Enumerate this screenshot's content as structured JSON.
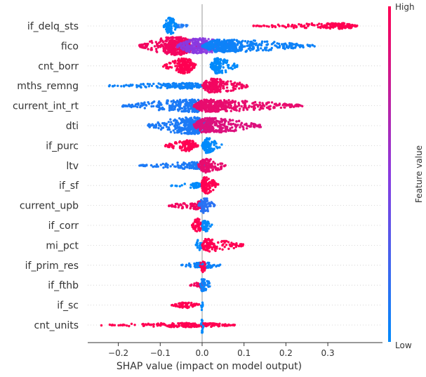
{
  "chart_data": {
    "type": "beeswarm",
    "title": "",
    "xlabel": "SHAP value (impact on model output)",
    "ylabel": "",
    "xlim": [
      -0.27,
      0.38
    ],
    "x_ticks": [
      -0.2,
      -0.1,
      0.0,
      0.1,
      0.2,
      0.3
    ],
    "x_tick_labels": [
      "−0.2",
      "−0.1",
      "0.0",
      "0.1",
      "0.2",
      "0.3"
    ],
    "colorbar": {
      "title": "Feature value",
      "high_label": "High",
      "low_label": "Low",
      "low_color": "#008afb",
      "high_color": "#ff0052"
    },
    "features": [
      {
        "name": "if_delq_sts",
        "groups": [
          {
            "min": -0.092,
            "max": -0.057,
            "peak": -0.078,
            "height": 12,
            "value": 0.0,
            "alpha": 1.0
          },
          {
            "min": -0.06,
            "max": -0.03,
            "peak": -0.05,
            "height": 3,
            "value": 0.1,
            "alpha": 0.8
          },
          {
            "min": 0.12,
            "max": 0.37,
            "peak": 0.34,
            "height": 4,
            "value": 1.0,
            "alpha": 1.0
          }
        ]
      },
      {
        "name": "fico",
        "groups": [
          {
            "min": -0.15,
            "max": 0.0,
            "peak": -0.06,
            "height": 13,
            "value": 0.95,
            "alpha": 1.0
          },
          {
            "min": -0.06,
            "max": 0.08,
            "peak": -0.01,
            "height": 11,
            "value": 0.5,
            "alpha": 0.9
          },
          {
            "min": 0.0,
            "max": 0.27,
            "peak": 0.04,
            "height": 9,
            "value": 0.05,
            "alpha": 1.0
          }
        ]
      },
      {
        "name": "cnt_borr",
        "groups": [
          {
            "min": -0.095,
            "max": -0.015,
            "peak": -0.04,
            "height": 11,
            "value": 1.0,
            "alpha": 1.0
          },
          {
            "min": 0.02,
            "max": 0.085,
            "peak": 0.035,
            "height": 11,
            "value": 0.0,
            "alpha": 1.0
          }
        ]
      },
      {
        "name": "mths_remng",
        "groups": [
          {
            "min": -0.225,
            "max": 0.01,
            "peak": -0.03,
            "height": 4,
            "value": 0.05,
            "alpha": 1.0
          },
          {
            "min": 0.0,
            "max": 0.115,
            "peak": 0.02,
            "height": 10,
            "value": 0.95,
            "alpha": 1.0
          }
        ]
      },
      {
        "name": "current_int_rt",
        "groups": [
          {
            "min": -0.19,
            "max": 0.0,
            "peak": -0.01,
            "height": 9,
            "value": 0.1,
            "alpha": 1.0
          },
          {
            "min": -0.02,
            "max": 0.24,
            "peak": 0.01,
            "height": 9,
            "value": 0.9,
            "alpha": 1.0
          }
        ]
      },
      {
        "name": "dti",
        "groups": [
          {
            "min": -0.13,
            "max": 0.02,
            "peak": -0.02,
            "height": 12,
            "value": 0.1,
            "alpha": 1.0
          },
          {
            "min": -0.02,
            "max": 0.14,
            "peak": 0.01,
            "height": 11,
            "value": 0.85,
            "alpha": 1.0
          }
        ]
      },
      {
        "name": "if_purc",
        "groups": [
          {
            "min": -0.088,
            "max": -0.01,
            "peak": -0.03,
            "height": 8,
            "value": 1.0,
            "alpha": 1.0
          },
          {
            "min": 0.0,
            "max": 0.048,
            "peak": 0.012,
            "height": 11,
            "value": 0.0,
            "alpha": 1.0
          }
        ]
      },
      {
        "name": "ltv",
        "groups": [
          {
            "min": -0.15,
            "max": 0.005,
            "peak": -0.005,
            "height": 5,
            "value": 0.1,
            "alpha": 1.0
          },
          {
            "min": -0.01,
            "max": 0.06,
            "peak": 0.008,
            "height": 10,
            "value": 0.9,
            "alpha": 1.0
          }
        ]
      },
      {
        "name": "if_sf",
        "groups": [
          {
            "min": -0.075,
            "max": -0.003,
            "peak": -0.01,
            "height": 4,
            "value": 0.0,
            "alpha": 1.0
          },
          {
            "min": -0.003,
            "max": 0.04,
            "peak": 0.006,
            "height": 12,
            "value": 1.0,
            "alpha": 1.0
          }
        ]
      },
      {
        "name": "current_upb",
        "groups": [
          {
            "min": -0.085,
            "max": 0.0,
            "peak": -0.005,
            "height": 6,
            "value": 0.95,
            "alpha": 1.0
          },
          {
            "min": -0.01,
            "max": 0.03,
            "peak": 0.005,
            "height": 11,
            "value": 0.15,
            "alpha": 1.0
          }
        ]
      },
      {
        "name": "if_corr",
        "groups": [
          {
            "min": -0.025,
            "max": 0.0,
            "peak": -0.01,
            "height": 10,
            "value": 1.0,
            "alpha": 1.0
          },
          {
            "min": 0.0,
            "max": 0.028,
            "peak": 0.004,
            "height": 9,
            "value": 0.0,
            "alpha": 1.0
          }
        ]
      },
      {
        "name": "mi_pct",
        "groups": [
          {
            "min": -0.015,
            "max": 0.0,
            "peak": -0.006,
            "height": 10,
            "value": 0.0,
            "alpha": 1.0
          },
          {
            "min": 0.0,
            "max": 0.1,
            "peak": 0.006,
            "height": 9,
            "value": 1.0,
            "alpha": 1.0
          }
        ]
      },
      {
        "name": "if_prim_res",
        "groups": [
          {
            "min": -0.055,
            "max": 0.045,
            "peak": 0.004,
            "height": 4,
            "value": 0.05,
            "alpha": 1.0
          },
          {
            "min": -0.005,
            "max": 0.01,
            "peak": 0.002,
            "height": 10,
            "value": 1.0,
            "alpha": 1.0
          }
        ]
      },
      {
        "name": "if_fthb",
        "groups": [
          {
            "min": -0.03,
            "max": 0.0,
            "peak": -0.003,
            "height": 4,
            "value": 0.95,
            "alpha": 1.0
          },
          {
            "min": -0.005,
            "max": 0.022,
            "peak": 0.002,
            "height": 10,
            "value": 0.05,
            "alpha": 1.0
          }
        ]
      },
      {
        "name": "if_sc",
        "groups": [
          {
            "min": -0.075,
            "max": -0.002,
            "peak": -0.04,
            "height": 4,
            "value": 1.0,
            "alpha": 1.0
          },
          {
            "min": -0.003,
            "max": 0.002,
            "peak": 0.0,
            "height": 9,
            "value": 0.0,
            "alpha": 1.0
          }
        ]
      },
      {
        "name": "cnt_units",
        "groups": [
          {
            "min": -0.245,
            "max": 0.078,
            "peak": -0.02,
            "height": 3,
            "value": 1.0,
            "alpha": 1.0
          },
          {
            "min": -0.003,
            "max": 0.003,
            "peak": 0.0,
            "height": 11,
            "value": 0.0,
            "alpha": 1.0
          }
        ]
      }
    ]
  }
}
